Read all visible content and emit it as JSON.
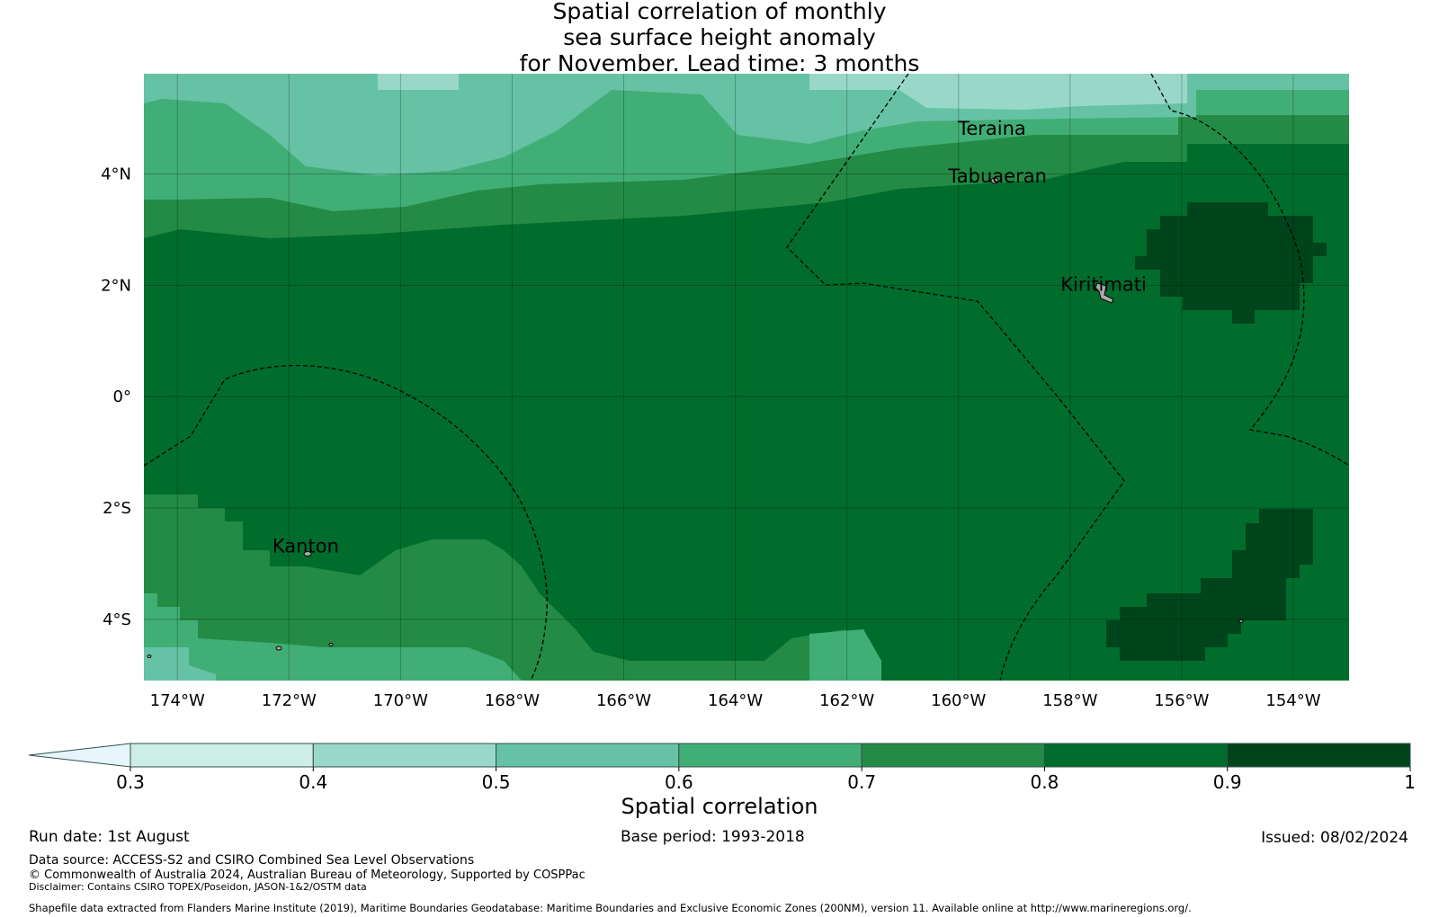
{
  "title": {
    "line1": "Spatial correlation of monthly",
    "line2": "sea surface height anomaly",
    "line3": "for November. Lead time: 3 months"
  },
  "map": {
    "lon_range": [
      -174.6,
      -153.0
    ],
    "lat_range": [
      -5.1,
      5.8
    ],
    "lon_ticks": [
      -174,
      -172,
      -170,
      -168,
      -166,
      -164,
      -162,
      -160,
      -158,
      -156,
      -154
    ],
    "lon_tick_labels": [
      "174°W",
      "172°W",
      "170°W",
      "168°W",
      "166°W",
      "164°W",
      "162°W",
      "160°W",
      "158°W",
      "156°W",
      "154°W"
    ],
    "lat_ticks": [
      4,
      2,
      0,
      -2,
      -4
    ],
    "lat_tick_labels": [
      "4°N",
      "2°N",
      "0°",
      "2°S",
      "4°S"
    ],
    "gridlines": true,
    "boundary_style": "dashed EEZ lines",
    "places": [
      {
        "name": "Teraina",
        "lon": -159.4,
        "lat": 4.7
      },
      {
        "name": "Tabuaeran",
        "lon": -159.3,
        "lat": 3.85
      },
      {
        "name": "Kiritimati",
        "lon": -157.4,
        "lat": 1.9
      },
      {
        "name": "Kanton",
        "lon": -171.7,
        "lat": -2.8
      }
    ]
  },
  "colorbar": {
    "label": "Spatial correlation",
    "ticks": [
      "0.3",
      "0.4",
      "0.5",
      "0.6",
      "0.7",
      "0.8",
      "0.9",
      "1"
    ],
    "colors": [
      "#cdeee7",
      "#99d8c9",
      "#66c2a4",
      "#41ae76",
      "#238b45",
      "#006d2c",
      "#00441b"
    ],
    "extend_min_color": "#e5f5f9",
    "extend": "min"
  },
  "footer": {
    "run_date": "Run date: 1st August",
    "base_period": "Base period: 1993-2018",
    "issued": "Issued: 08/02/2024",
    "data_source": "Data source: ACCESS-S2 and CSIRO Combined Sea Level Observations",
    "copyright": "© Commonwealth of Australia 2024, Australian Bureau of Meteorology, Supported by COSPPac",
    "disclaimer": "Disclaimer: Contains CSIRO TOPEX/Poseidon, JASON-1&2/OSTM data",
    "shapefile": "Shapefile data extracted from Flanders Marine Institute (2019), Maritime Boundaries Geodatabase: Maritime Boundaries and Exclusive Economic Zones (200NM), version 11. Available online at http://www.marineregions.org/."
  }
}
